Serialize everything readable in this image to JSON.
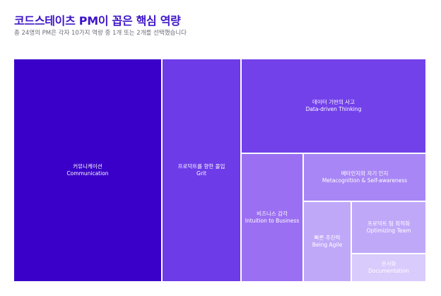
{
  "title": "코드스테이츠 PM이 꼽은 핵심 역량",
  "subtitle": "총 24명의 PM은 각자 10가지 역량 중 1개 또는 2개를 선택했습니다",
  "chart_data": {
    "type": "treemap",
    "title": "코드스테이츠 PM이 꼽은 핵심 역량",
    "subtitle": "총 24명의 PM은 각자 10가지 역량 중 1개 또는 2개를 선택했습니다",
    "items": [
      {
        "label_ko": "커뮤니케이션",
        "label_en": "Communication",
        "color": "#3a00c9",
        "text_color": "#ffffff"
      },
      {
        "label_ko": "프로덕트를 향한 몰입",
        "label_en": "Grit",
        "color": "#6d3be8",
        "text_color": "#ffffff"
      },
      {
        "label_ko": "데이터 기반의 사고",
        "label_en": "Data-driven Thinking",
        "color": "#7341ea",
        "text_color": "#ffffff"
      },
      {
        "label_ko": "비즈니스 감각",
        "label_en": "Intuition to Business",
        "color": "#9b6ff2",
        "text_color": "#ffffff"
      },
      {
        "label_ko": "메타인지와 자기 인지",
        "label_en": "Metacognition & Self-awareness",
        "color": "#a986f5",
        "text_color": "#ffffff"
      },
      {
        "label_ko": "빠른 추진력",
        "label_en": "Being Agile",
        "color": "#c0a8f9",
        "text_color": "#ffffff"
      },
      {
        "label_ko": "프로덕트 팀 최적화",
        "label_en": "Optimizing Team",
        "color": "#c0a8f9",
        "text_color": "#ffffff"
      },
      {
        "label_ko": "문서화",
        "label_en": "Documentation",
        "color": "#d9cbfc",
        "text_color": "#ffffff"
      }
    ]
  }
}
